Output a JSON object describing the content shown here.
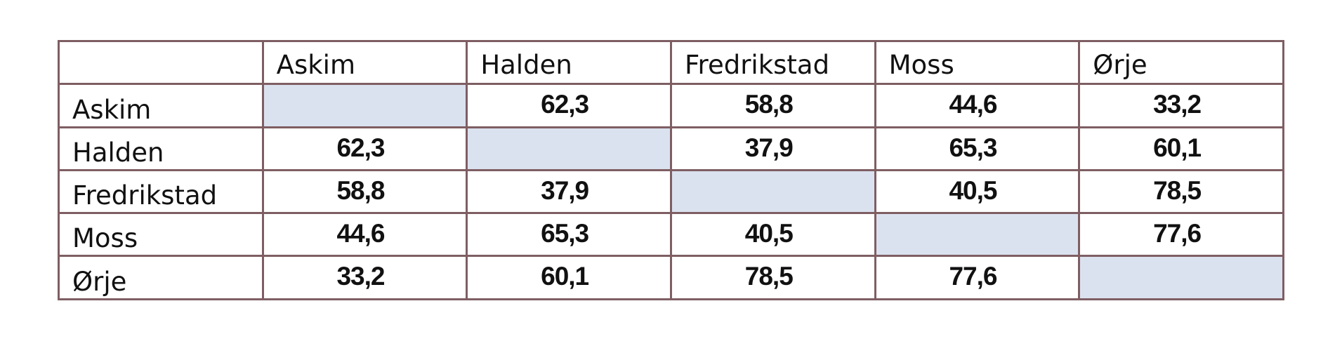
{
  "table": {
    "columns": [
      "",
      "Askim",
      "Halden",
      "Fredrikstad",
      "Moss",
      "Ørje"
    ],
    "rows": [
      {
        "label": "Askim",
        "values": [
          "",
          "62,3",
          "58,8",
          "44,6",
          "33,2"
        ]
      },
      {
        "label": "Halden",
        "values": [
          "62,3",
          "",
          "37,9",
          "65,3",
          "60,1"
        ]
      },
      {
        "label": "Fredrikstad",
        "values": [
          "58,8",
          "37,9",
          "",
          "40,5",
          "78,5"
        ]
      },
      {
        "label": "Moss",
        "values": [
          "44,6",
          "65,3",
          "40,5",
          "",
          "77,6"
        ]
      },
      {
        "label": "Ørje",
        "values": [
          "33,2",
          "60,1",
          "78,5",
          "77,6",
          ""
        ]
      }
    ]
  },
  "colors": {
    "border": "#7e5e63",
    "diagonal_fill": "#dbe2ef",
    "text": "#111111"
  }
}
